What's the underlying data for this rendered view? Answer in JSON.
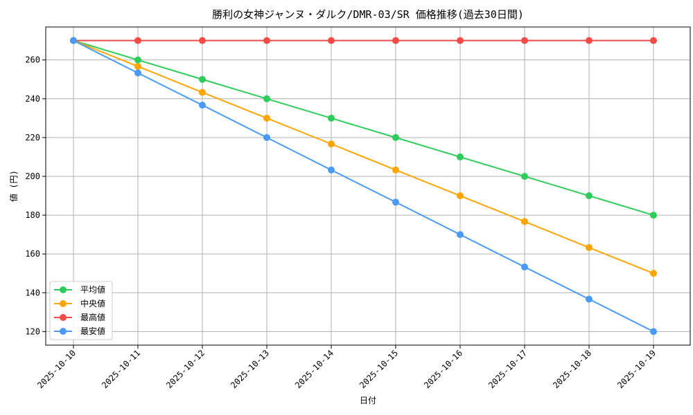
{
  "chart_data": {
    "type": "line",
    "title": "勝利の女神ジャンヌ・ダルク/DMR-03/SR 価格推移(過去30日間)",
    "xlabel": "日付",
    "ylabel": "値 (円)",
    "categories": [
      "2025-10-10",
      "2025-10-11",
      "2025-10-12",
      "2025-10-13",
      "2025-10-14",
      "2025-10-15",
      "2025-10-16",
      "2025-10-17",
      "2025-10-18",
      "2025-10-19"
    ],
    "ylim": [
      113,
      277
    ],
    "yticks": [
      120,
      140,
      160,
      180,
      200,
      220,
      240,
      260
    ],
    "grid": true,
    "legend_position": "lower-left",
    "series": [
      {
        "name": "平均値",
        "color": "#2ecc5a",
        "values": [
          270,
          260,
          250,
          240,
          230,
          220,
          210,
          200,
          190,
          180
        ]
      },
      {
        "name": "中央値",
        "color": "#ffa500",
        "values": [
          270,
          256.7,
          243.3,
          230,
          216.7,
          203.3,
          190,
          176.7,
          163.3,
          150
        ]
      },
      {
        "name": "最高値",
        "color": "#f44b47",
        "values": [
          270,
          270,
          270,
          270,
          270,
          270,
          270,
          270,
          270,
          270
        ]
      },
      {
        "name": "最安値",
        "color": "#4a9af5",
        "values": [
          270,
          253.3,
          236.7,
          220,
          203.3,
          186.7,
          170,
          153.3,
          136.7,
          120
        ]
      }
    ]
  }
}
